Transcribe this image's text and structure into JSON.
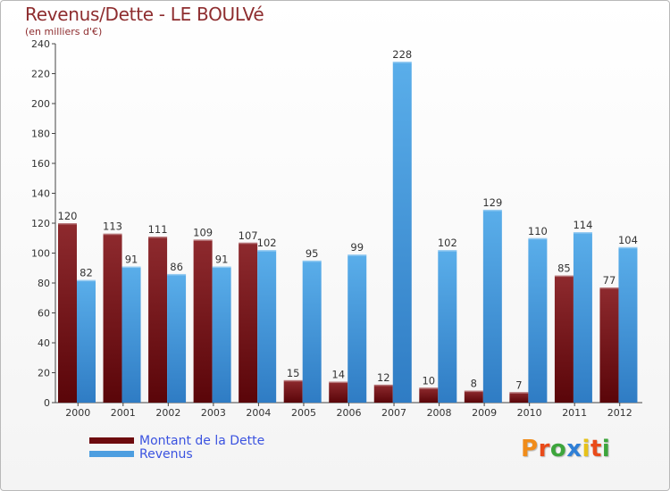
{
  "header": {
    "title": "Revenus/Dette - LE BOULVé",
    "subtitle": "(en milliers d'€)"
  },
  "colors": {
    "dette": "#7b0f14",
    "revenus": "#4d9ee0",
    "title": "#8e2d2f",
    "legend_text": "#3b53e0"
  },
  "legend": {
    "dette_label": "Montant de la Dette",
    "revenus_label": "Revenus"
  },
  "logo": {
    "text": "Proxiti",
    "letter_colors": [
      "#f08c1a",
      "#e94b1a",
      "#3da53c",
      "#2f7fd6",
      "#e6c21a",
      "#e94b1a",
      "#3da53c"
    ]
  },
  "chart_data": {
    "type": "bar",
    "title": "Revenus/Dette - LE BOULVé",
    "subtitle": "(en milliers d'€)",
    "xlabel": "",
    "ylabel": "",
    "ylim": [
      0,
      240
    ],
    "yticks": [
      0,
      20,
      40,
      60,
      80,
      100,
      120,
      140,
      160,
      180,
      200,
      220,
      240
    ],
    "grid": false,
    "legend_position": "bottom-left",
    "categories": [
      "2000",
      "2001",
      "2002",
      "2003",
      "2004",
      "2005",
      "2006",
      "2007",
      "2008",
      "2009",
      "2010",
      "2011",
      "2012"
    ],
    "series": [
      {
        "name": "Montant de la Dette",
        "values": [
          120,
          113,
          111,
          109,
          107,
          15,
          14,
          12,
          10,
          8,
          7,
          85,
          77
        ]
      },
      {
        "name": "Revenus",
        "values": [
          82,
          91,
          86,
          91,
          102,
          95,
          99,
          228,
          102,
          129,
          110,
          114,
          104
        ]
      }
    ]
  }
}
